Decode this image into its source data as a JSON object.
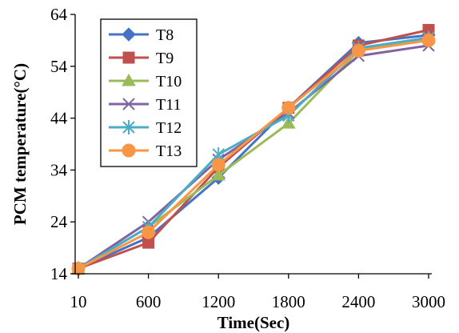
{
  "chart_data": {
    "type": "line",
    "xlabel": "Time(Sec)",
    "ylabel": "PCM temperature(°C)",
    "categories": [
      "10",
      "600",
      "1200",
      "1800",
      "2400",
      "3000"
    ],
    "ylim": [
      14,
      64
    ],
    "yticks": [
      14,
      24,
      34,
      44,
      54,
      64
    ],
    "grid": false,
    "legend_position": "top-left",
    "series": [
      {
        "name": "T8",
        "values": [
          15,
          21,
          32.5,
          46,
          58.5,
          60
        ],
        "color": "#4472C4",
        "marker": "diamond"
      },
      {
        "name": "T9",
        "values": [
          15,
          20,
          34.5,
          46,
          58,
          61
        ],
        "color": "#C0504D",
        "marker": "square"
      },
      {
        "name": "T10",
        "values": [
          15,
          23,
          33,
          43,
          57,
          59.5
        ],
        "color": "#9BBB59",
        "marker": "triangle"
      },
      {
        "name": "T11",
        "values": [
          15,
          24,
          36,
          45,
          56,
          58
        ],
        "color": "#8064A2",
        "marker": "x"
      },
      {
        "name": "T12",
        "values": [
          15,
          23,
          37,
          44.5,
          57.5,
          59.5
        ],
        "color": "#4BACC6",
        "marker": "star"
      },
      {
        "name": "T13",
        "values": [
          15,
          22,
          35,
          46,
          57,
          59
        ],
        "color": "#F79646",
        "marker": "circle"
      }
    ]
  }
}
